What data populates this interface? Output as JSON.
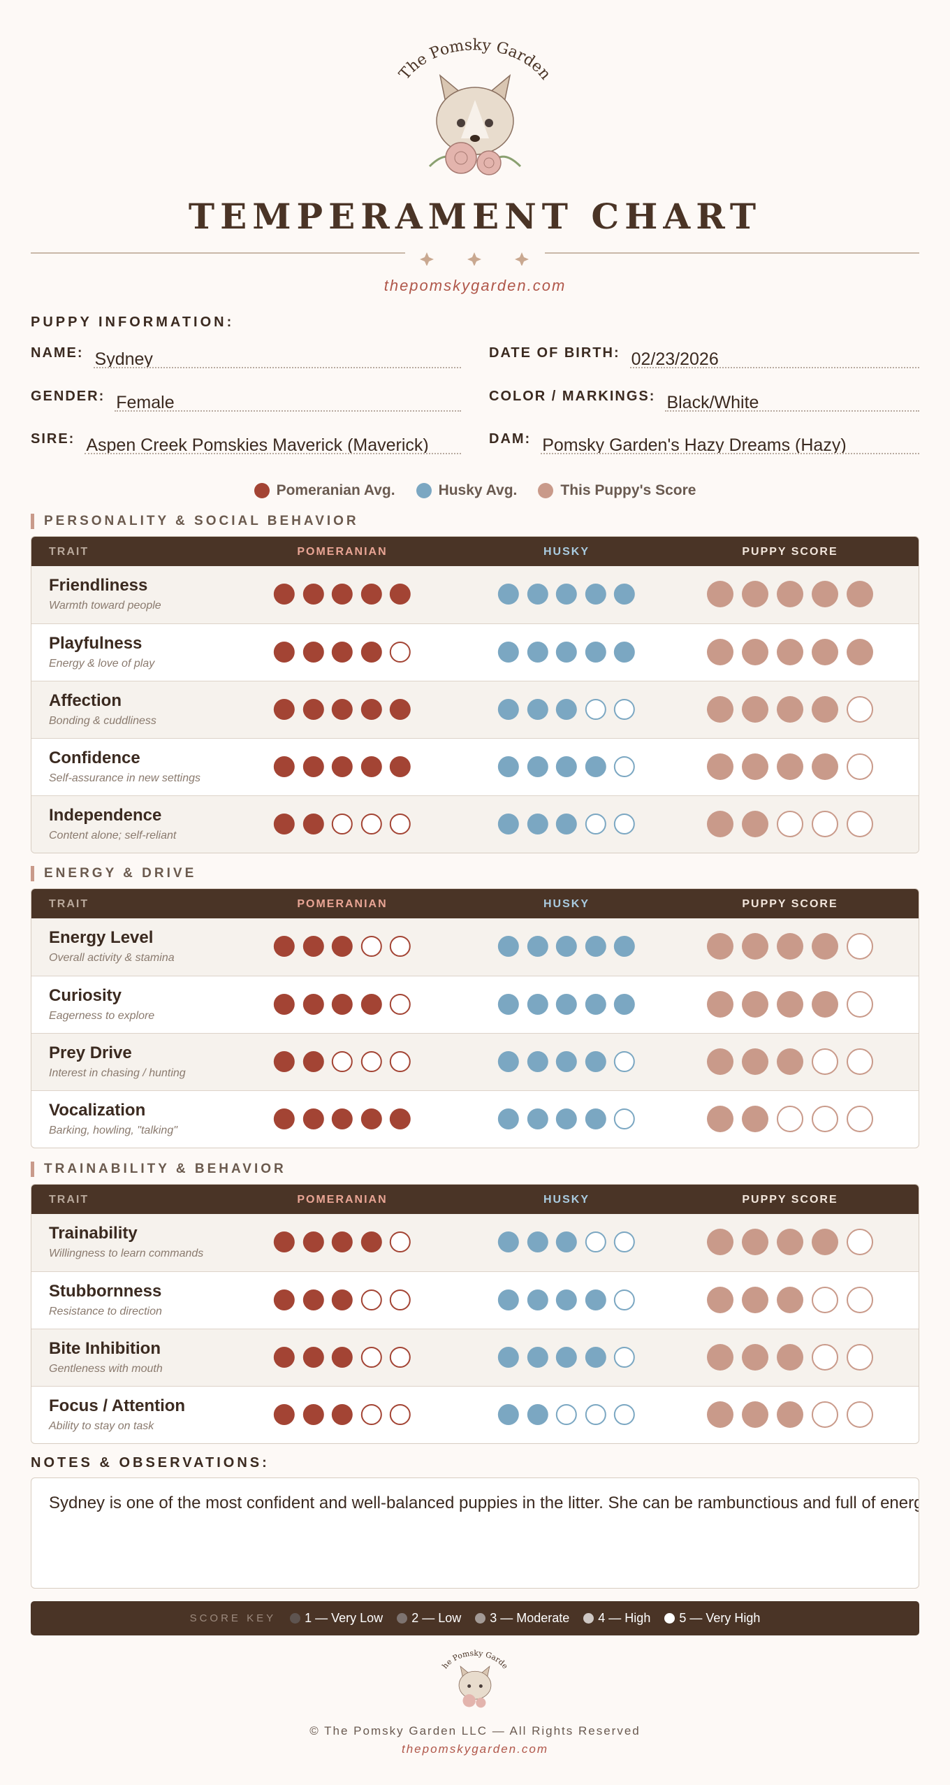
{
  "header": {
    "logo_text": "The Pomsky Garden",
    "title": "TEMPERAMENT CHART",
    "website": "thepomskygarden.com"
  },
  "puppy_info": {
    "title": "PUPPY INFORMATION:",
    "fields": [
      {
        "label": "NAME:",
        "value": "Sydney"
      },
      {
        "label": "DATE OF BIRTH:",
        "value": "02/23/2026"
      },
      {
        "label": "GENDER:",
        "value": "Female"
      },
      {
        "label": "COLOR / MARKINGS:",
        "value": "Black/White"
      },
      {
        "label": "SIRE:",
        "value": "Aspen Creek Pomskies Maverick (Maverick)"
      },
      {
        "label": "DAM:",
        "value": "Pomsky Garden's Hazy Dreams (Hazy)"
      }
    ]
  },
  "legend": [
    {
      "name": "Pomeranian Avg.",
      "color": "#a34434"
    },
    {
      "name": "Husky Avg.",
      "color": "#7ba7c2"
    },
    {
      "name": "This Puppy's Score",
      "color": "#c99a8a"
    }
  ],
  "table_headers": [
    "TRAIT",
    "POMERANIAN",
    "HUSKY",
    "PUPPY SCORE"
  ],
  "sections": [
    {
      "title": "PERSONALITY & SOCIAL BEHAVIOR",
      "rows": [
        {
          "trait": "Friendliness",
          "description": "Warmth toward people",
          "pomeranian": 5,
          "husky": 5,
          "puppy": 5
        },
        {
          "trait": "Playfulness",
          "description": "Energy & love of play",
          "pomeranian": 4,
          "husky": 5,
          "puppy": 5
        },
        {
          "trait": "Affection",
          "description": "Bonding & cuddliness",
          "pomeranian": 5,
          "husky": 3,
          "puppy": 4
        },
        {
          "trait": "Confidence",
          "description": "Self-assurance in new settings",
          "pomeranian": 5,
          "husky": 4,
          "puppy": 4
        },
        {
          "trait": "Independence",
          "description": "Content alone; self-reliant",
          "pomeranian": 2,
          "husky": 3,
          "puppy": 2
        }
      ]
    },
    {
      "title": "ENERGY & DRIVE",
      "rows": [
        {
          "trait": "Energy Level",
          "description": "Overall activity & stamina",
          "pomeranian": 3,
          "husky": 5,
          "puppy": 4
        },
        {
          "trait": "Curiosity",
          "description": "Eagerness to explore",
          "pomeranian": 4,
          "husky": 5,
          "puppy": 4
        },
        {
          "trait": "Prey Drive",
          "description": "Interest in chasing / hunting",
          "pomeranian": 2,
          "husky": 4,
          "puppy": 3
        },
        {
          "trait": "Vocalization",
          "description": "Barking, howling, \"talking\"",
          "pomeranian": 5,
          "husky": 4,
          "puppy": 2
        }
      ]
    },
    {
      "title": "TRAINABILITY & BEHAVIOR",
      "rows": [
        {
          "trait": "Trainability",
          "description": "Willingness to learn commands",
          "pomeranian": 4,
          "husky": 3,
          "puppy": 4
        },
        {
          "trait": "Stubbornness",
          "description": "Resistance to direction",
          "pomeranian": 3,
          "husky": 4,
          "puppy": 3
        },
        {
          "trait": "Bite Inhibition",
          "description": "Gentleness with mouth",
          "pomeranian": 3,
          "husky": 4,
          "puppy": 3
        },
        {
          "trait": "Focus / Attention",
          "description": "Ability to stay on task",
          "pomeranian": 3,
          "husky": 2,
          "puppy": 3
        }
      ]
    }
  ],
  "notes": {
    "title": "NOTES & OBSERVATIONS:",
    "text": "Sydney is one of the most confident and well-balanced puppies in the litter. She can be rambunctious and full of energy"
  },
  "score_key": {
    "label": "SCORE KEY",
    "items": [
      {
        "text": "1 — Very Low",
        "color": "#5e5450"
      },
      {
        "text": "2 — Low",
        "color": "#7d7370"
      },
      {
        "text": "3 — Moderate",
        "color": "#a39a96"
      },
      {
        "text": "4 — High",
        "color": "#cfc8c4"
      },
      {
        "text": "5 — Very High",
        "color": "#ffffff"
      }
    ]
  },
  "footer": {
    "copyright": "© The Pomsky Garden LLC — All Rights Reserved",
    "website": "thepomskygarden.com"
  }
}
